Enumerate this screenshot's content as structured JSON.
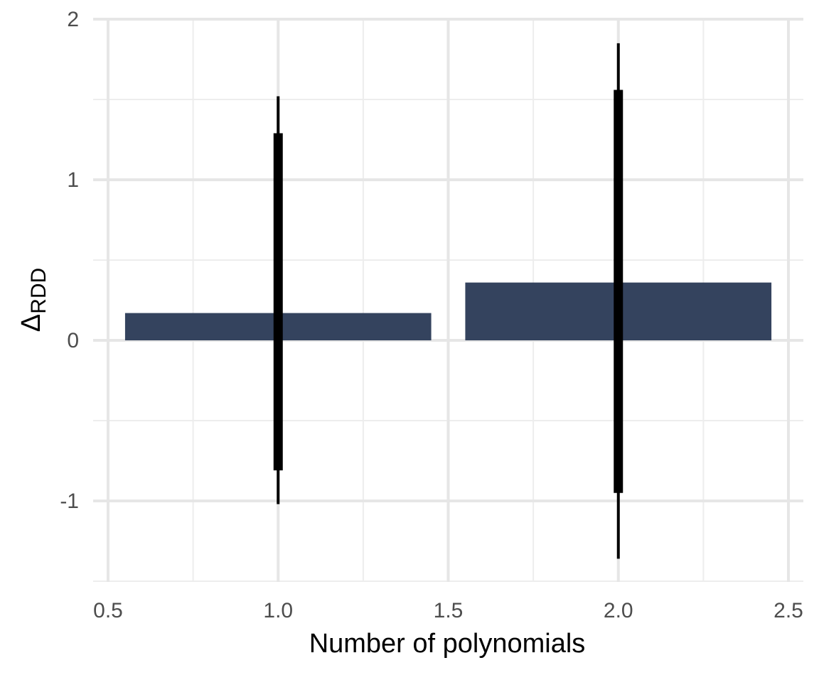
{
  "chart_data": {
    "type": "bar",
    "x": [
      1,
      2
    ],
    "values": [
      0.17,
      0.36
    ],
    "error_bars": {
      "inner": [
        {
          "x": 1,
          "low": -0.81,
          "high": 1.29
        },
        {
          "x": 2,
          "low": -0.95,
          "high": 1.56
        }
      ],
      "outer": [
        {
          "x": 1,
          "low": -1.02,
          "high": 1.52
        },
        {
          "x": 2,
          "low": -1.36,
          "high": 1.85
        }
      ]
    },
    "bar_width": 0.9,
    "xlim": [
      0.45,
      2.55
    ],
    "ylim": [
      -1.5,
      2.0
    ],
    "xticks": [
      0.5,
      1.0,
      1.5,
      2.0,
      2.5
    ],
    "xtick_labels": [
      "0.5",
      "1.0",
      "1.5",
      "2.0",
      "2.5"
    ],
    "yticks": [
      -1,
      0,
      1,
      2
    ],
    "ytick_labels": [
      "-1",
      "0",
      "1",
      "2"
    ],
    "xlabel": "Number of polynomials",
    "ylabel": "Δ",
    "ylabel_sub": "RDD",
    "grid": true,
    "legend": "none",
    "colors": {
      "bar": "#34435e",
      "error_bar": "#000000",
      "grid_major": "#e6e6e6",
      "grid_minor": "#ededed",
      "tick_text": "#4d4d4d"
    }
  }
}
